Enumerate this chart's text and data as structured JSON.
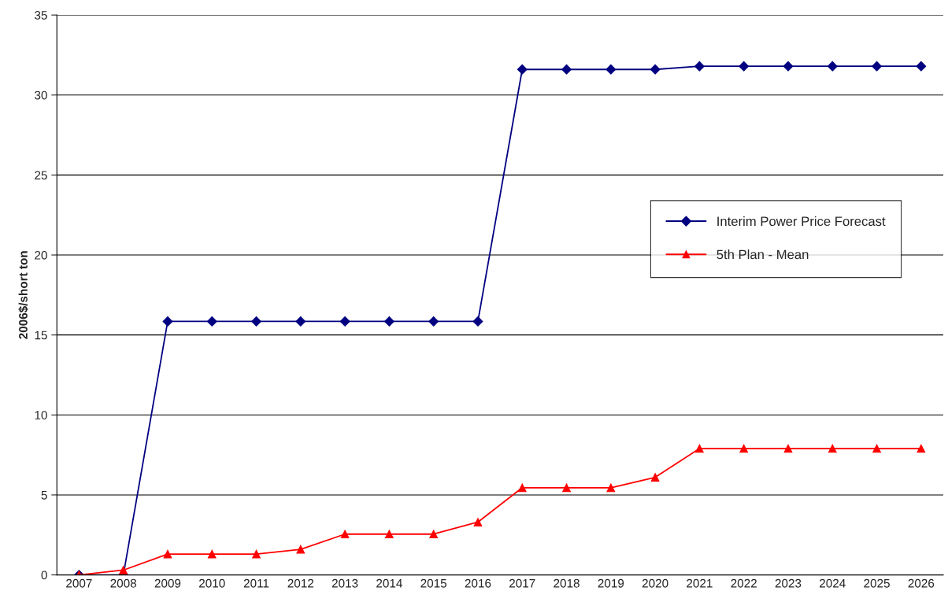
{
  "chart_data": {
    "type": "line",
    "ylabel": "2006$/short ton",
    "categories": [
      "2007",
      "2008",
      "2009",
      "2010",
      "2011",
      "2012",
      "2013",
      "2014",
      "2015",
      "2016",
      "2017",
      "2018",
      "2019",
      "2020",
      "2021",
      "2022",
      "2023",
      "2024",
      "2025",
      "2026"
    ],
    "series": [
      {
        "name": "Interim Power Price Forecast",
        "color": "#000080",
        "marker": "diamond",
        "values": [
          0,
          0,
          15.85,
          15.85,
          15.85,
          15.85,
          15.85,
          15.85,
          15.85,
          15.85,
          31.6,
          31.6,
          31.6,
          31.6,
          31.8,
          31.8,
          31.8,
          31.8,
          31.8,
          31.8
        ]
      },
      {
        "name": "5th Plan - Mean",
        "color": "#ff0000",
        "marker": "triangle",
        "values": [
          0,
          0.3,
          1.3,
          1.3,
          1.3,
          1.6,
          2.55,
          2.55,
          2.55,
          3.3,
          5.45,
          5.45,
          5.45,
          6.1,
          7.9,
          7.9,
          7.9,
          7.9,
          7.9,
          7.9
        ]
      }
    ],
    "ylim": [
      0,
      35
    ],
    "yticks": [
      0,
      5,
      10,
      15,
      20,
      25,
      30,
      35
    ],
    "grid": "y",
    "legend": "right",
    "line_style": "solid"
  }
}
